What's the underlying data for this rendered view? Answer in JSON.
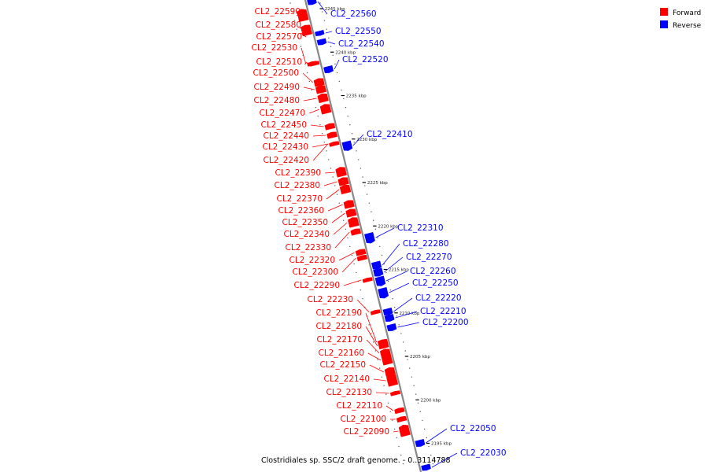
{
  "caption": "Clostridiales sp. SSC/2 draft genome. - 0..3114788",
  "legend": {
    "forward": {
      "label": "Forward",
      "color": "#ff0000"
    },
    "reverse": {
      "label": "Reverse",
      "color": "#0000ff"
    }
  },
  "colors": {
    "axis": "#888888",
    "tick": "#000000",
    "dot": "#555555"
  },
  "genome": {
    "view_start_kbp": 2192,
    "view_end_kbp": 2249
  },
  "kbp_ticks": [
    {
      "kbp": 2245,
      "label": "2245 kbp"
    },
    {
      "kbp": 2240,
      "label": "2240 kbp"
    },
    {
      "kbp": 2235,
      "label": "2235 kbp"
    },
    {
      "kbp": 2230,
      "label": "2230 kbp"
    },
    {
      "kbp": 2225,
      "label": "2225 kbp"
    },
    {
      "kbp": 2220,
      "label": "2220 kbp"
    },
    {
      "kbp": 2215,
      "label": "2215 kbp"
    },
    {
      "kbp": 2210,
      "label": "2210 kbp"
    },
    {
      "kbp": 2205,
      "label": "2205 kbp"
    },
    {
      "kbp": 2200,
      "label": "2200 kbp"
    },
    {
      "kbp": 2195,
      "label": "2195 kbp"
    }
  ],
  "genes": [
    {
      "label": "CL2_22590",
      "strand": "forward"
    },
    {
      "label": "CL2_22580",
      "strand": "forward"
    },
    {
      "label": "CL2_22570",
      "strand": "forward"
    },
    {
      "label": "CL2_22530",
      "strand": "forward"
    },
    {
      "label": "CL2_22510",
      "strand": "forward"
    },
    {
      "label": "CL2_22500",
      "strand": "forward"
    },
    {
      "label": "CL2_22490",
      "strand": "forward"
    },
    {
      "label": "CL2_22480",
      "strand": "forward"
    },
    {
      "label": "CL2_22470",
      "strand": "forward"
    },
    {
      "label": "CL2_22450",
      "strand": "forward"
    },
    {
      "label": "CL2_22440",
      "strand": "forward"
    },
    {
      "label": "CL2_22430",
      "strand": "forward"
    },
    {
      "label": "CL2_22420",
      "strand": "forward"
    },
    {
      "label": "CL2_22390",
      "strand": "forward"
    },
    {
      "label": "CL2_22380",
      "strand": "forward"
    },
    {
      "label": "CL2_22370",
      "strand": "forward"
    },
    {
      "label": "CL2_22360",
      "strand": "forward"
    },
    {
      "label": "CL2_22350",
      "strand": "forward"
    },
    {
      "label": "CL2_22340",
      "strand": "forward"
    },
    {
      "label": "CL2_22330",
      "strand": "forward"
    },
    {
      "label": "CL2_22320",
      "strand": "forward"
    },
    {
      "label": "CL2_22300",
      "strand": "forward"
    },
    {
      "label": "CL2_22290",
      "strand": "forward"
    },
    {
      "label": "CL2_22230",
      "strand": "forward"
    },
    {
      "label": "CL2_22190",
      "strand": "forward"
    },
    {
      "label": "CL2_22180",
      "strand": "forward"
    },
    {
      "label": "CL2_22170",
      "strand": "forward"
    },
    {
      "label": "CL2_22160",
      "strand": "forward"
    },
    {
      "label": "CL2_22150",
      "strand": "forward"
    },
    {
      "label": "CL2_22140",
      "strand": "forward"
    },
    {
      "label": "CL2_22130",
      "strand": "forward"
    },
    {
      "label": "CL2_22110",
      "strand": "forward"
    },
    {
      "label": "CL2_22100",
      "strand": "forward"
    },
    {
      "label": "CL2_22090",
      "strand": "forward"
    },
    {
      "label": "CL2_22560",
      "strand": "reverse"
    },
    {
      "label": "CL2_22550",
      "strand": "reverse"
    },
    {
      "label": "CL2_22540",
      "strand": "reverse"
    },
    {
      "label": "CL2_22520",
      "strand": "reverse"
    },
    {
      "label": "CL2_22410",
      "strand": "reverse"
    },
    {
      "label": "CL2_22310",
      "strand": "reverse"
    },
    {
      "label": "CL2_22280",
      "strand": "reverse"
    },
    {
      "label": "CL2_22270",
      "strand": "reverse"
    },
    {
      "label": "CL2_22260",
      "strand": "reverse"
    },
    {
      "label": "CL2_22250",
      "strand": "reverse"
    },
    {
      "label": "CL2_22220",
      "strand": "reverse"
    },
    {
      "label": "CL2_22210",
      "strand": "reverse"
    },
    {
      "label": "CL2_22200",
      "strand": "reverse"
    },
    {
      "label": "CL2_22050",
      "strand": "reverse"
    },
    {
      "label": "CL2_22030",
      "strand": "reverse"
    }
  ]
}
